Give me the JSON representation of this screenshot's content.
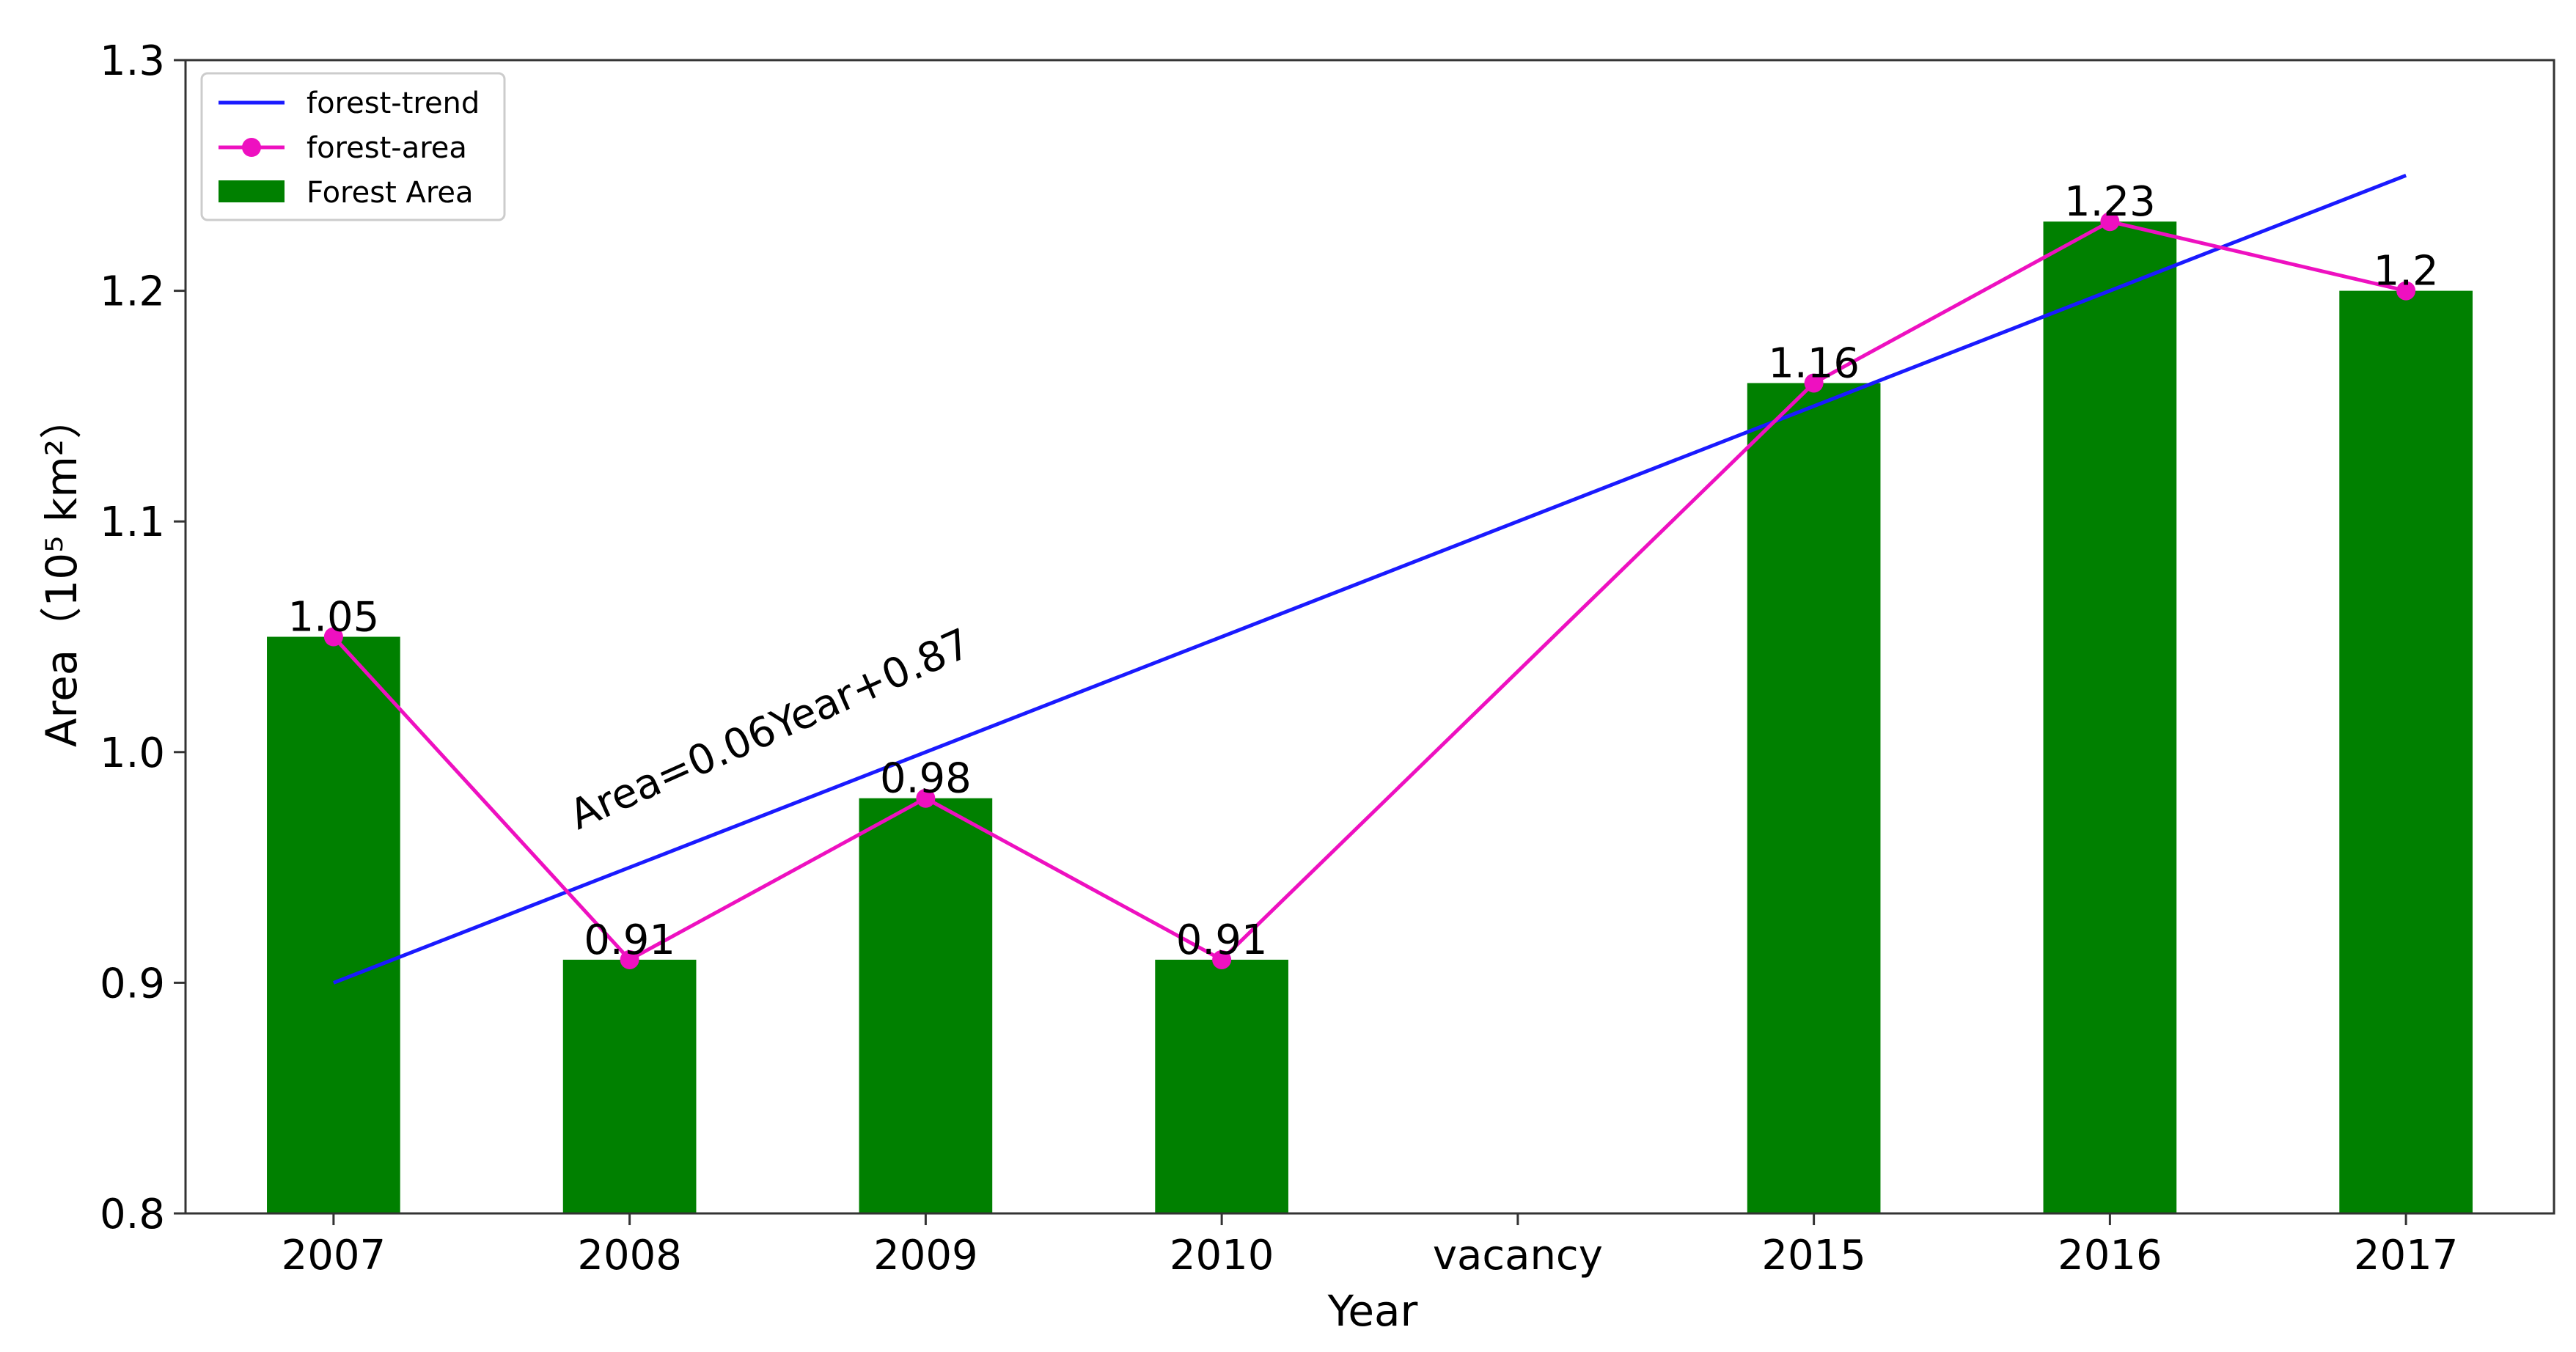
{
  "chart_data": {
    "type": "bar",
    "categories": [
      "2007",
      "2008",
      "2009",
      "2010",
      "vacancy",
      "2015",
      "2016",
      "2017"
    ],
    "xlabel": "Year",
    "ylabel": "Area（10⁵ km²）",
    "ylim": [
      0.8,
      1.3
    ],
    "yticks": [
      "0.8",
      "0.9",
      "1.0",
      "1.1",
      "1.2",
      "1.3"
    ],
    "grid": false,
    "legend_position": "top-left",
    "series": [
      {
        "name": "Forest Area",
        "type": "bar",
        "color": "#008000",
        "values": [
          1.05,
          0.91,
          0.98,
          0.91,
          null,
          1.16,
          1.23,
          1.2
        ],
        "labels": [
          "1.05",
          "0.91",
          "0.98",
          "0.91",
          "",
          "1.16",
          "1.23",
          "1.2"
        ]
      },
      {
        "name": "forest-area",
        "type": "line",
        "marker": "circle",
        "color": "#ee10c0",
        "values": [
          1.05,
          0.91,
          0.98,
          0.91,
          null,
          1.16,
          1.23,
          1.2
        ]
      },
      {
        "name": "forest-trend",
        "type": "line",
        "color": "#1a1aff",
        "start": {
          "category": "2007",
          "y": 0.9
        },
        "end": {
          "category": "2017",
          "y": 1.25
        }
      }
    ],
    "legend": [
      "forest-trend",
      "forest-area",
      "Forest Area"
    ],
    "annotation": "Area=0.06Year+0.87"
  }
}
